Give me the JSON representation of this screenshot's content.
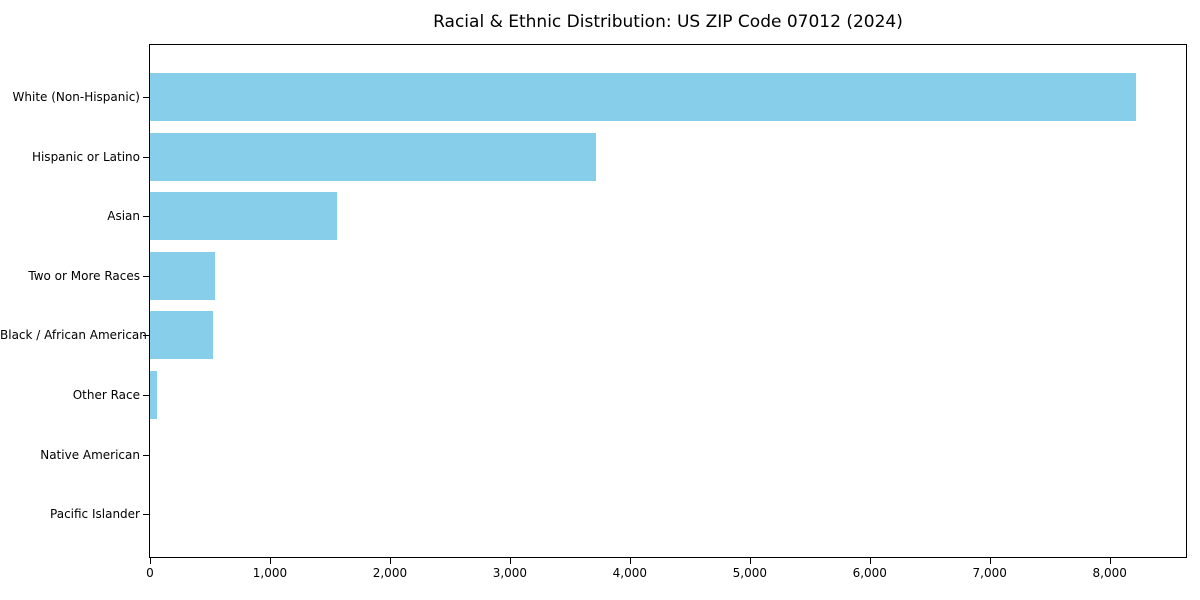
{
  "chart_data": {
    "type": "bar",
    "orientation": "horizontal",
    "title": "Racial & Ethnic Distribution: US ZIP Code 07012 (2024)",
    "categories": [
      "White (Non-Hispanic)",
      "Hispanic or Latino",
      "Asian",
      "Two or More Races",
      "Black / African American",
      "Other Race",
      "Native American",
      "Pacific Islander"
    ],
    "values": [
      8220,
      3715,
      1555,
      540,
      525,
      55,
      0,
      0
    ],
    "xlabel": "",
    "ylabel": "",
    "xlim": [
      0,
      8636
    ],
    "x_ticks": [
      0,
      1000,
      2000,
      3000,
      4000,
      5000,
      6000,
      7000,
      8000
    ],
    "x_tick_labels": [
      "0",
      "1,000",
      "2,000",
      "3,000",
      "4,000",
      "5,000",
      "6,000",
      "7,000",
      "8,000"
    ],
    "bar_color": "#87CEEB",
    "frame_color": "#000000",
    "background_color": "#ffffff",
    "grid": false,
    "legend": "none"
  }
}
